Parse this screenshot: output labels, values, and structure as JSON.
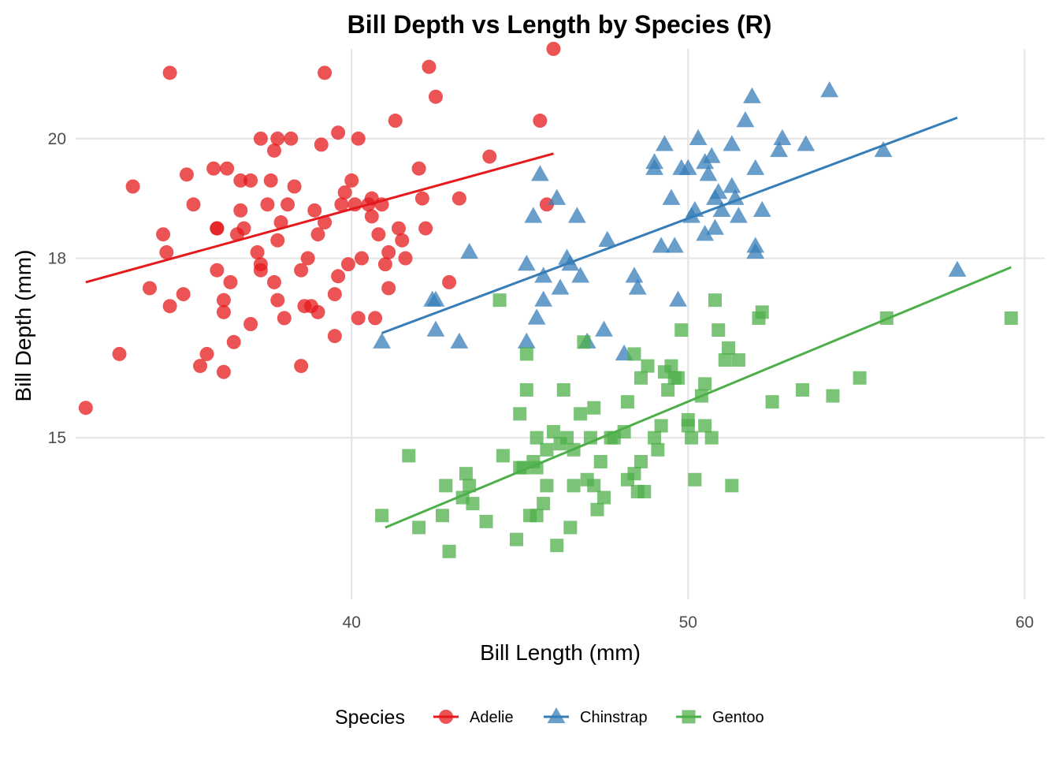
{
  "chart_data": {
    "type": "scatter",
    "title": "Bill Depth vs Length by Species (R)",
    "xlabel": "Bill Length (mm)",
    "ylabel": "Bill Depth (mm)",
    "xlim": [
      31.8,
      60.6
    ],
    "ylim": [
      12.3,
      21.5
    ],
    "x_ticks": [
      40,
      50,
      60
    ],
    "y_ticks": [
      15,
      18,
      20
    ],
    "x_tick_labels": [
      "40",
      "50",
      "60"
    ],
    "y_tick_labels": [
      "15",
      "18",
      "20"
    ],
    "grid": true,
    "legend": {
      "title": "Species",
      "position": "bottom"
    },
    "series": [
      {
        "name": "Adelie",
        "color": "#e41a1c",
        "marker": "circle",
        "fit_line": {
          "x": [
            32.1,
            46.0
          ],
          "y": [
            17.6,
            19.75
          ]
        },
        "points": [
          [
            32.1,
            15.5
          ],
          [
            33.1,
            16.4
          ],
          [
            33.5,
            19.2
          ],
          [
            34.0,
            17.5
          ],
          [
            34.4,
            18.4
          ],
          [
            34.5,
            18.1
          ],
          [
            34.6,
            17.2
          ],
          [
            34.6,
            21.1
          ],
          [
            35.1,
            19.4
          ],
          [
            35.5,
            16.2
          ],
          [
            35.3,
            18.9
          ],
          [
            35.7,
            16.4
          ],
          [
            35.9,
            19.5
          ],
          [
            36.0,
            18.5
          ],
          [
            36.0,
            17.8
          ],
          [
            36.2,
            17.3
          ],
          [
            36.2,
            17.1
          ],
          [
            36.2,
            16.1
          ],
          [
            36.3,
            19.5
          ],
          [
            36.4,
            17.6
          ],
          [
            36.6,
            18.4
          ],
          [
            36.7,
            19.3
          ],
          [
            36.7,
            18.8
          ],
          [
            36.8,
            18.5
          ],
          [
            37.0,
            16.9
          ],
          [
            37.2,
            18.1
          ],
          [
            37.3,
            17.9
          ],
          [
            37.3,
            20.0
          ],
          [
            37.5,
            18.9
          ],
          [
            37.6,
            19.3
          ],
          [
            37.7,
            17.6
          ],
          [
            37.8,
            17.3
          ],
          [
            37.8,
            18.3
          ],
          [
            37.9,
            18.6
          ],
          [
            37.8,
            20.0
          ],
          [
            38.1,
            18.9
          ],
          [
            38.3,
            19.2
          ],
          [
            38.5,
            17.8
          ],
          [
            38.6,
            17.2
          ],
          [
            38.8,
            17.2
          ],
          [
            38.9,
            18.8
          ],
          [
            39.0,
            17.1
          ],
          [
            39.2,
            18.6
          ],
          [
            39.2,
            21.1
          ],
          [
            39.5,
            17.4
          ],
          [
            39.5,
            16.7
          ],
          [
            39.6,
            17.7
          ],
          [
            39.7,
            18.9
          ],
          [
            39.8,
            19.1
          ],
          [
            40.1,
            18.9
          ],
          [
            40.2,
            17.0
          ],
          [
            40.3,
            18.0
          ],
          [
            40.5,
            18.9
          ],
          [
            40.6,
            19.0
          ],
          [
            40.7,
            17.0
          ],
          [
            40.8,
            18.4
          ],
          [
            40.9,
            18.9
          ],
          [
            41.1,
            18.1
          ],
          [
            41.1,
            17.5
          ],
          [
            41.3,
            20.3
          ],
          [
            41.4,
            18.5
          ],
          [
            41.5,
            18.3
          ],
          [
            42.0,
            19.5
          ],
          [
            42.2,
            18.5
          ],
          [
            42.3,
            21.2
          ],
          [
            42.5,
            20.7
          ],
          [
            42.9,
            17.6
          ],
          [
            43.2,
            19.0
          ],
          [
            44.1,
            19.7
          ],
          [
            45.8,
            18.9
          ],
          [
            45.6,
            20.3
          ],
          [
            46.0,
            21.5
          ],
          [
            36.0,
            18.5
          ],
          [
            37.0,
            19.3
          ],
          [
            38.0,
            17.0
          ],
          [
            39.0,
            18.4
          ],
          [
            40.0,
            19.3
          ],
          [
            41.0,
            17.9
          ],
          [
            35.0,
            17.4
          ],
          [
            36.5,
            16.6
          ],
          [
            38.5,
            16.2
          ],
          [
            39.9,
            17.9
          ],
          [
            41.6,
            18.0
          ],
          [
            37.3,
            17.8
          ],
          [
            38.2,
            20.0
          ],
          [
            39.6,
            20.1
          ],
          [
            40.2,
            20.0
          ],
          [
            37.7,
            19.8
          ],
          [
            38.7,
            18.0
          ],
          [
            39.1,
            19.9
          ],
          [
            40.6,
            18.7
          ],
          [
            42.1,
            19.0
          ]
        ]
      },
      {
        "name": "Chinstrap",
        "color": "#377eb8",
        "marker": "triangle",
        "fit_line": {
          "x": [
            40.9,
            58.0
          ],
          "y": [
            16.75,
            20.35
          ]
        },
        "points": [
          [
            40.9,
            16.6
          ],
          [
            42.4,
            17.3
          ],
          [
            42.5,
            17.3
          ],
          [
            42.5,
            16.8
          ],
          [
            43.2,
            16.6
          ],
          [
            43.5,
            18.1
          ],
          [
            45.2,
            16.6
          ],
          [
            45.2,
            17.9
          ],
          [
            45.4,
            18.7
          ],
          [
            45.5,
            17.0
          ],
          [
            45.6,
            19.4
          ],
          [
            45.7,
            17.3
          ],
          [
            45.7,
            17.7
          ],
          [
            46.1,
            19.0
          ],
          [
            46.2,
            17.5
          ],
          [
            46.4,
            18.0
          ],
          [
            46.5,
            17.9
          ],
          [
            46.7,
            18.7
          ],
          [
            46.8,
            17.7
          ],
          [
            47.0,
            16.6
          ],
          [
            47.5,
            16.8
          ],
          [
            47.6,
            18.3
          ],
          [
            48.1,
            16.4
          ],
          [
            48.5,
            17.5
          ],
          [
            49.0,
            19.5
          ],
          [
            49.2,
            18.2
          ],
          [
            49.5,
            19.0
          ],
          [
            49.6,
            18.2
          ],
          [
            49.7,
            17.3
          ],
          [
            50.1,
            18.7
          ],
          [
            50.2,
            18.8
          ],
          [
            50.3,
            20.0
          ],
          [
            50.5,
            18.4
          ],
          [
            50.6,
            19.4
          ],
          [
            50.8,
            18.5
          ],
          [
            51.0,
            18.8
          ],
          [
            51.3,
            19.9
          ],
          [
            51.5,
            18.7
          ],
          [
            52.0,
            18.1
          ],
          [
            52.0,
            19.5
          ],
          [
            52.2,
            18.8
          ],
          [
            52.8,
            20.0
          ],
          [
            53.5,
            19.9
          ],
          [
            54.2,
            20.8
          ],
          [
            55.8,
            19.8
          ],
          [
            58.0,
            17.8
          ],
          [
            49.8,
            19.5
          ],
          [
            50.5,
            19.6
          ],
          [
            51.4,
            19.0
          ],
          [
            51.9,
            20.7
          ],
          [
            49.0,
            19.6
          ],
          [
            50.9,
            19.1
          ],
          [
            51.3,
            19.2
          ],
          [
            52.0,
            18.2
          ],
          [
            49.3,
            19.9
          ],
          [
            48.4,
            17.7
          ],
          [
            50.7,
            19.7
          ],
          [
            52.7,
            19.8
          ],
          [
            50.8,
            19.0
          ],
          [
            51.7,
            20.3
          ],
          [
            50.0,
            19.5
          ]
        ]
      },
      {
        "name": "Gentoo",
        "color": "#4daf4a",
        "marker": "square",
        "fit_line": {
          "x": [
            41.0,
            59.6
          ],
          "y": [
            13.5,
            17.85
          ]
        },
        "points": [
          [
            40.9,
            13.7
          ],
          [
            41.7,
            14.7
          ],
          [
            42.0,
            13.5
          ],
          [
            42.7,
            13.7
          ],
          [
            42.8,
            14.2
          ],
          [
            42.9,
            13.1
          ],
          [
            43.3,
            14.0
          ],
          [
            43.4,
            14.4
          ],
          [
            43.5,
            14.2
          ],
          [
            43.6,
            13.9
          ],
          [
            44.0,
            13.6
          ],
          [
            44.4,
            17.3
          ],
          [
            44.5,
            14.7
          ],
          [
            44.9,
            13.3
          ],
          [
            45.0,
            15.4
          ],
          [
            45.1,
            14.5
          ],
          [
            45.2,
            16.4
          ],
          [
            45.2,
            15.8
          ],
          [
            45.3,
            13.7
          ],
          [
            45.4,
            14.6
          ],
          [
            45.5,
            13.7
          ],
          [
            45.5,
            15.0
          ],
          [
            45.7,
            13.9
          ],
          [
            45.8,
            14.2
          ],
          [
            46.1,
            13.2
          ],
          [
            46.2,
            14.9
          ],
          [
            46.3,
            15.8
          ],
          [
            46.4,
            15.0
          ],
          [
            46.5,
            13.5
          ],
          [
            46.6,
            14.2
          ],
          [
            46.8,
            15.4
          ],
          [
            46.9,
            16.6
          ],
          [
            47.0,
            14.3
          ],
          [
            47.2,
            15.5
          ],
          [
            47.4,
            14.6
          ],
          [
            47.5,
            14.0
          ],
          [
            47.7,
            15.0
          ],
          [
            47.8,
            15.0
          ],
          [
            48.1,
            15.1
          ],
          [
            48.2,
            14.3
          ],
          [
            48.4,
            14.4
          ],
          [
            48.5,
            14.1
          ],
          [
            48.6,
            16.0
          ],
          [
            48.7,
            14.1
          ],
          [
            48.8,
            16.2
          ],
          [
            49.1,
            14.8
          ],
          [
            49.2,
            15.2
          ],
          [
            49.4,
            15.8
          ],
          [
            49.5,
            16.2
          ],
          [
            49.6,
            16.0
          ],
          [
            49.8,
            16.8
          ],
          [
            50.0,
            15.2
          ],
          [
            50.1,
            15.0
          ],
          [
            50.2,
            14.3
          ],
          [
            50.4,
            15.7
          ],
          [
            50.5,
            15.9
          ],
          [
            50.8,
            17.3
          ],
          [
            51.1,
            16.3
          ],
          [
            51.3,
            14.2
          ],
          [
            51.5,
            16.3
          ],
          [
            52.1,
            17.0
          ],
          [
            52.5,
            15.6
          ],
          [
            53.4,
            15.8
          ],
          [
            54.3,
            15.7
          ],
          [
            55.1,
            16.0
          ],
          [
            55.9,
            17.0
          ],
          [
            59.6,
            17.0
          ],
          [
            45.0,
            14.5
          ],
          [
            46.0,
            15.1
          ],
          [
            47.1,
            15.0
          ],
          [
            48.6,
            14.6
          ],
          [
            49.0,
            15.0
          ],
          [
            50.0,
            15.3
          ],
          [
            50.5,
            15.2
          ],
          [
            45.5,
            14.5
          ],
          [
            46.6,
            14.8
          ],
          [
            47.3,
            13.8
          ],
          [
            48.2,
            15.6
          ],
          [
            49.7,
            16.0
          ],
          [
            50.9,
            16.8
          ],
          [
            51.2,
            16.5
          ],
          [
            52.2,
            17.1
          ],
          [
            45.8,
            14.8
          ],
          [
            47.2,
            14.2
          ],
          [
            48.4,
            16.4
          ],
          [
            49.3,
            16.1
          ],
          [
            50.7,
            15.0
          ]
        ]
      }
    ]
  }
}
